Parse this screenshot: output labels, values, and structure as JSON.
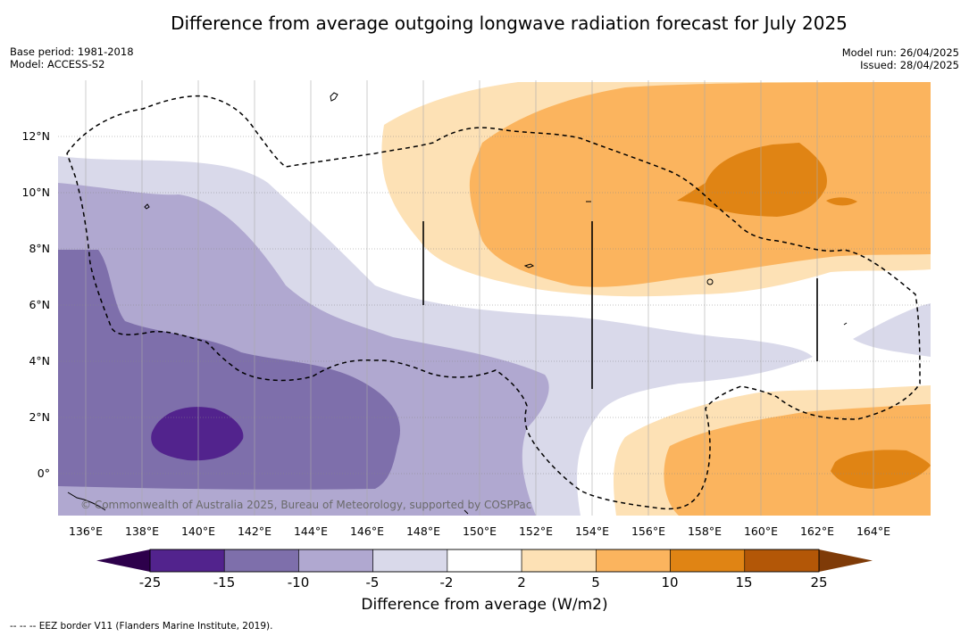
{
  "title": "Difference from average outgoing longwave radiation forecast for July 2025",
  "meta_left": {
    "base_period": "Base period: 1981-2018",
    "model": "Model: ACCESS-S2"
  },
  "meta_right": {
    "model_run": "Model run: 26/04/2025",
    "issued": "Issued: 28/04/2025"
  },
  "map": {
    "latitude_labels": [
      "12°N",
      "10°N",
      "8°N",
      "6°N",
      "4°N",
      "2°N",
      "0°"
    ],
    "longitude_labels": [
      "136°E",
      "138°E",
      "140°E",
      "142°E",
      "144°E",
      "146°E",
      "148°E",
      "150°E",
      "152°E",
      "154°E",
      "156°E",
      "158°E",
      "160°E",
      "162°E",
      "164°E"
    ],
    "copyright": "© Commonwealth of Australia 2025, Bureau of Meteorology, supported by COSPPac",
    "colors": {
      "purple_darkest": "#52238d",
      "purple_dark": "#7e6fab",
      "purple_mid": "#b0a8d0",
      "purple_light": "#d9d9ea",
      "neutral": "#ffffff",
      "orange_light": "#fde1b5",
      "orange_mid": "#fbb45e",
      "orange_dark": "#e08414",
      "orange_darkest": "#b35707"
    }
  },
  "colorbar": {
    "labels": [
      "-25",
      "-15",
      "-10",
      "-5",
      "-2",
      "2",
      "5",
      "10",
      "15",
      "25"
    ],
    "colors": [
      "#52238d",
      "#7e6fab",
      "#b0a8d0",
      "#d9d9ea",
      "#ffffff",
      "#fde1b5",
      "#fbb45e",
      "#e08414",
      "#b35707"
    ],
    "extend_low_color": "#2d004b",
    "extend_high_color": "#7f3b08",
    "title": "Difference from average (W/m2)"
  },
  "footnote": "-- -- -- EEZ border V11 (Flanders Marine Institute, 2019)."
}
